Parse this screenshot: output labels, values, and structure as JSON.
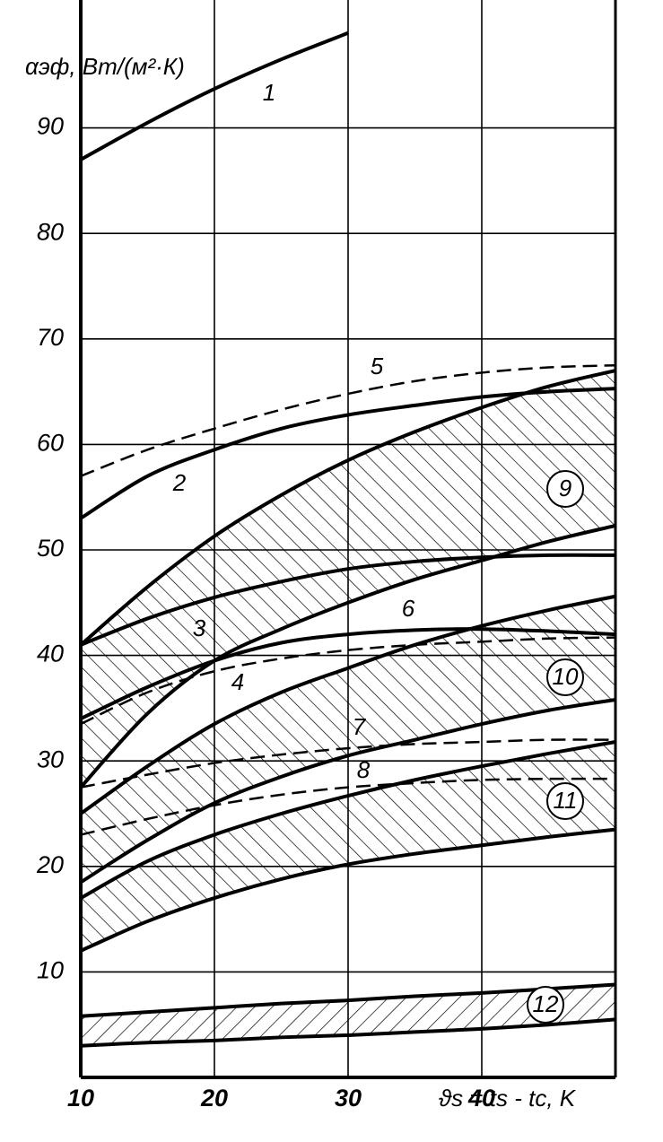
{
  "chart_data": {
    "type": "line",
    "y_label": "αэф, Вт/(м²·К)",
    "x_label": "ϑs = ts - tc, K",
    "xlim": [
      10,
      50
    ],
    "xticks": [
      10,
      20,
      30,
      40
    ],
    "ylim": [
      0,
      100
    ],
    "yticks": [
      10,
      20,
      30,
      40,
      50,
      60,
      70,
      80,
      90
    ],
    "grid": true,
    "color": "#000000",
    "x": [
      10,
      15,
      20,
      25,
      30,
      35,
      40,
      45,
      50
    ],
    "series": [
      {
        "name": "1",
        "style": "solid",
        "values": [
          87,
          90.5,
          93.7,
          96.5,
          99,
          null,
          null,
          null,
          null
        ]
      },
      {
        "name": "2",
        "style": "solid",
        "values": [
          53,
          57,
          59.5,
          61.5,
          62.8,
          63.7,
          64.5,
          65,
          65.3
        ]
      },
      {
        "name": "5",
        "style": "dashed",
        "values": [
          57,
          59.5,
          61.5,
          63.3,
          64.8,
          66,
          66.8,
          67.3,
          67.5
        ]
      },
      {
        "name": "3",
        "style": "solid",
        "values": [
          41,
          43.5,
          45.5,
          47,
          48.2,
          48.9,
          49.3,
          49.5,
          49.5
        ]
      },
      {
        "name": "6",
        "style": "solid",
        "values": [
          34,
          37,
          39.5,
          41.2,
          42,
          42.4,
          42.5,
          42.3,
          42
        ]
      },
      {
        "name": "4",
        "style": "dashed",
        "values": [
          33.5,
          36.5,
          38.5,
          39.7,
          40.5,
          41,
          41.3,
          41.6,
          41.7
        ]
      },
      {
        "name": "7",
        "style": "dashed",
        "values": [
          27.5,
          28.7,
          29.8,
          30.6,
          31.2,
          31.6,
          31.8,
          32,
          32
        ]
      },
      {
        "name": "8",
        "style": "dashed",
        "values": [
          23,
          24.5,
          25.8,
          26.8,
          27.5,
          27.9,
          28.2,
          28.3,
          28.3
        ]
      }
    ],
    "bands": [
      {
        "name": "9",
        "hatch": "back",
        "high": [
          41,
          46.5,
          51.3,
          55.2,
          58.5,
          61.2,
          63.5,
          65.5,
          67
        ],
        "low": [
          27.5,
          34.5,
          39.5,
          42.5,
          45,
          47.2,
          49,
          50.8,
          52.3
        ]
      },
      {
        "name": "10",
        "hatch": "back",
        "high": [
          25,
          29.5,
          33.5,
          36.5,
          38.8,
          41,
          42.8,
          44.3,
          45.6
        ],
        "low": [
          18.5,
          22.5,
          26,
          28.5,
          30.5,
          32,
          33.5,
          34.8,
          35.8
        ]
      },
      {
        "name": "11",
        "hatch": "back",
        "high": [
          17,
          20.5,
          23,
          25,
          26.7,
          28.2,
          29.5,
          30.7,
          31.8
        ],
        "low": [
          12,
          14.8,
          17,
          18.8,
          20.2,
          21.2,
          22,
          22.8,
          23.5
        ]
      },
      {
        "name": "12",
        "hatch": "forward",
        "high": [
          5.8,
          6.2,
          6.6,
          7,
          7.3,
          7.7,
          8,
          8.4,
          8.8
        ],
        "low": [
          3,
          3.3,
          3.5,
          3.8,
          4,
          4.3,
          4.6,
          5,
          5.5
        ]
      }
    ]
  }
}
